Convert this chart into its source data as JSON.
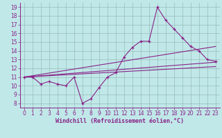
{
  "xlabel": "Windchill (Refroidissement éolien,°C)",
  "xlim": [
    -0.5,
    23.5
  ],
  "ylim": [
    7.5,
    19.5
  ],
  "xticks": [
    0,
    1,
    2,
    3,
    4,
    5,
    6,
    7,
    8,
    9,
    10,
    11,
    12,
    13,
    14,
    15,
    16,
    17,
    18,
    19,
    20,
    21,
    22,
    23
  ],
  "yticks": [
    8,
    9,
    10,
    11,
    12,
    13,
    14,
    15,
    16,
    17,
    18,
    19
  ],
  "bg_color": "#c0e8e8",
  "line_color": "#882288",
  "grid_color": "#99bbbb",
  "line1_x": [
    0,
    1,
    2,
    3,
    4,
    5,
    6,
    7,
    8,
    9,
    10,
    11,
    12,
    13,
    14,
    15,
    16,
    17,
    18,
    19,
    20,
    21,
    22,
    23
  ],
  "line1_y": [
    11,
    11,
    10.2,
    10.5,
    10.2,
    10,
    11,
    8,
    8.5,
    9.8,
    11,
    11.5,
    13.3,
    14.4,
    15.1,
    15.1,
    19.0,
    17.5,
    16.5,
    15.5,
    14.5,
    14,
    13,
    12.8
  ],
  "line2_x": [
    0,
    23
  ],
  "line2_y": [
    11,
    14.5
  ],
  "line3_x": [
    0,
    23
  ],
  "line3_y": [
    11,
    12.7
  ],
  "line4_x": [
    0,
    23
  ],
  "line4_y": [
    11,
    12.2
  ],
  "marker": "+"
}
